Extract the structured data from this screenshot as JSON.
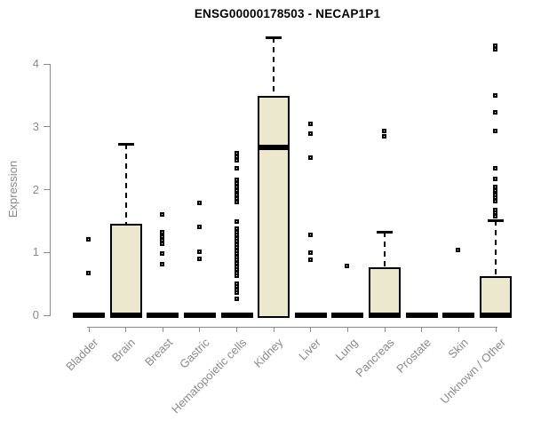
{
  "colors": {
    "background": "#ffffff",
    "box_fill": "#ece8cd",
    "box_border": "#000000",
    "median": "#000000",
    "whisker": "#000000",
    "outlier": "#000000",
    "axis": "#8a8a8a",
    "title_text": "#000000"
  },
  "chart_data": {
    "type": "boxplot",
    "title": "ENSG00000178503 - NECAP1P1",
    "xlabel": "",
    "ylabel": "Expression",
    "ylim": [
      0,
      4.45
    ],
    "yticks": [
      0,
      1,
      2,
      3,
      4
    ],
    "grid": "off",
    "legend": "none",
    "categories": [
      "Bladder",
      "Brain",
      "Breast",
      "Gastric",
      "Hematopoietic cells",
      "Kidney",
      "Liver",
      "Lung",
      "Pancreas",
      "Prostate",
      "Skin",
      "Unknown / Other"
    ],
    "boxes": [
      {
        "name": "Bladder",
        "q1": 0,
        "median": 0,
        "q3": 0,
        "whisker_low": 0,
        "whisker_high": 0,
        "outliers": [
          1.2,
          0.66
        ]
      },
      {
        "name": "Brain",
        "q1": 0,
        "median": 0,
        "q3": 1.46,
        "whisker_low": 0,
        "whisker_high": 2.73,
        "outliers": []
      },
      {
        "name": "Breast",
        "q1": 0,
        "median": 0,
        "q3": 0,
        "whisker_low": 0,
        "whisker_high": 0,
        "outliers": [
          1.6,
          1.31,
          1.25,
          1.19,
          1.13,
          0.97,
          0.8
        ]
      },
      {
        "name": "Gastric",
        "q1": 0,
        "median": 0,
        "q3": 0,
        "whisker_low": 0,
        "whisker_high": 0,
        "outliers": [
          1.78,
          1.4,
          1.01,
          0.89
        ]
      },
      {
        "name": "Hematopoietic cells",
        "q1": 0,
        "median": 0,
        "q3": 0,
        "whisker_low": 0,
        "whisker_high": 0,
        "outliers": [
          2.57,
          2.52,
          2.46,
          2.33,
          2.15,
          2.1,
          2.04,
          1.98,
          1.91,
          1.85,
          1.79,
          1.48,
          1.37,
          1.32,
          1.27,
          1.22,
          1.17,
          1.12,
          1.07,
          1.02,
          0.97,
          0.92,
          0.87,
          0.82,
          0.77,
          0.72,
          0.67,
          0.62,
          0.5,
          0.45,
          0.4,
          0.35,
          0.25
        ]
      },
      {
        "name": "Kidney",
        "q1": 0,
        "median": 2.67,
        "q3": 3.5,
        "whisker_low": 0,
        "whisker_high": 4.42,
        "outliers": []
      },
      {
        "name": "Liver",
        "q1": 0,
        "median": 0,
        "q3": 0,
        "whisker_low": 0,
        "whisker_high": 0,
        "outliers": [
          3.04,
          2.88,
          2.5,
          1.27,
          0.99,
          0.88
        ]
      },
      {
        "name": "Lung",
        "q1": 0,
        "median": 0,
        "q3": 0,
        "whisker_low": 0,
        "whisker_high": 0,
        "outliers": [
          0.78
        ]
      },
      {
        "name": "Pancreas",
        "q1": 0,
        "median": 0,
        "q3": 0.76,
        "whisker_low": 0,
        "whisker_high": 1.33,
        "outliers": [
          2.93,
          2.84
        ]
      },
      {
        "name": "Prostate",
        "q1": 0,
        "median": 0,
        "q3": 0,
        "whisker_low": 0,
        "whisker_high": 0,
        "outliers": []
      },
      {
        "name": "Skin",
        "q1": 0,
        "median": 0,
        "q3": 0,
        "whisker_low": 0,
        "whisker_high": 0,
        "outliers": [
          1.03
        ]
      },
      {
        "name": "Unknown / Other",
        "q1": 0,
        "median": 0,
        "q3": 0.62,
        "whisker_low": 0,
        "whisker_high": 1.52,
        "outliers": [
          4.29,
          4.23,
          3.49,
          3.22,
          2.93,
          2.33,
          2.16,
          2.04,
          1.98,
          1.91,
          1.86,
          1.81,
          1.67,
          1.62,
          1.57
        ]
      }
    ]
  }
}
